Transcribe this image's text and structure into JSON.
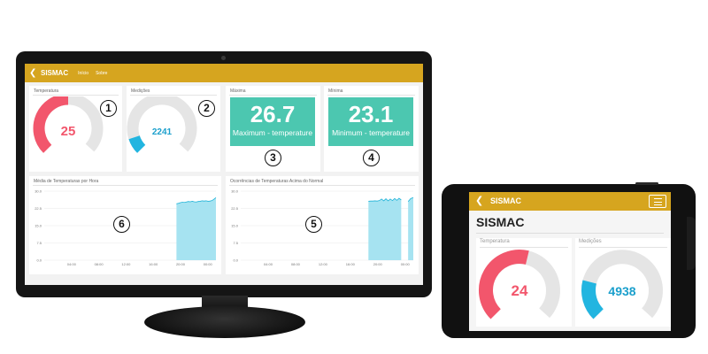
{
  "desktop": {
    "app_title": "SISMAC",
    "nav": [
      "Início",
      "Sobre"
    ],
    "cards": {
      "temperature": {
        "label": "Temperatura",
        "value": "25",
        "fraction": 0.5,
        "color": "#f2566c"
      },
      "measurements": {
        "label": "Medições",
        "value": "2241",
        "fraction": 0.1,
        "color": "#22b5e0"
      },
      "max": {
        "label": "Máxima",
        "value": "26.7",
        "caption": "Maximum - temperature",
        "color": "#4cc7b0"
      },
      "min": {
        "label": "Mínima",
        "value": "23.1",
        "caption": "Minimum - temperature",
        "color": "#4cc7b0"
      },
      "hourly": {
        "label": "Média de Temperaturas por Hora"
      },
      "occurrences": {
        "label": "Ocorrências de Temperaturas Acima do Normal"
      }
    },
    "callouts": [
      "1",
      "2",
      "3",
      "4",
      "5",
      "6"
    ]
  },
  "phone": {
    "app_title": "SISMAC",
    "heading": "SISMAC",
    "cards": {
      "temperature": {
        "label": "Temperatura",
        "value": "24",
        "fraction": 0.55,
        "color": "#f2566c"
      },
      "measurements": {
        "label": "Medições",
        "value": "4938",
        "fraction": 0.22,
        "color": "#22b5e0"
      }
    }
  },
  "chart_data": [
    {
      "type": "area",
      "title": "Média de Temperaturas por Hora",
      "y_ticks": [
        "30.0",
        "22.5",
        "15.0",
        "7.5",
        "0.0"
      ],
      "x_ticks": [
        "04:00",
        "08:00",
        "12:00",
        "16:00",
        "20:00",
        "00:00"
      ],
      "ylim": [
        0,
        30
      ],
      "x": [
        0.0,
        0.05,
        0.1,
        0.15,
        0.2,
        0.25,
        0.3,
        0.35,
        0.4,
        0.45,
        0.5,
        0.55,
        0.6,
        0.65,
        0.7,
        0.75,
        0.8,
        0.85,
        0.9,
        0.95,
        1.0
      ],
      "values": [
        24.5,
        24.7,
        25.0,
        25.2,
        25.1,
        25.3,
        25.5,
        25.4,
        25.6,
        25.4,
        25.3,
        25.5,
        25.6,
        25.8,
        25.7,
        25.8,
        25.6,
        25.7,
        25.9,
        26.5,
        27.2
      ],
      "series_color": "#a6e3f1",
      "line_color": "#1fb3d8",
      "span": [
        0.77,
        1.0
      ]
    },
    {
      "type": "area",
      "title": "Ocorrências de Temperaturas Acima do Normal",
      "y_ticks": [
        "30.0",
        "22.5",
        "15.0",
        "7.5",
        "0.0"
      ],
      "x_ticks": [
        "04:00",
        "08:00",
        "12:00",
        "16:00",
        "20:00",
        "00:00"
      ],
      "ylim": [
        0,
        30
      ],
      "segments": [
        {
          "span": [
            0.74,
            0.93
          ],
          "values": [
            25.6,
            25.7,
            25.7,
            25.8,
            25.7,
            25.9,
            26.6,
            25.8,
            26.7,
            25.8,
            26.6,
            25.9,
            26.8,
            26.0,
            26.9,
            26.2
          ]
        },
        {
          "span": [
            0.97,
            1.0
          ],
          "values": [
            25.5,
            26.8,
            27.2
          ]
        }
      ],
      "series_color": "#a6e3f1",
      "line_color": "#1fb3d8"
    }
  ]
}
